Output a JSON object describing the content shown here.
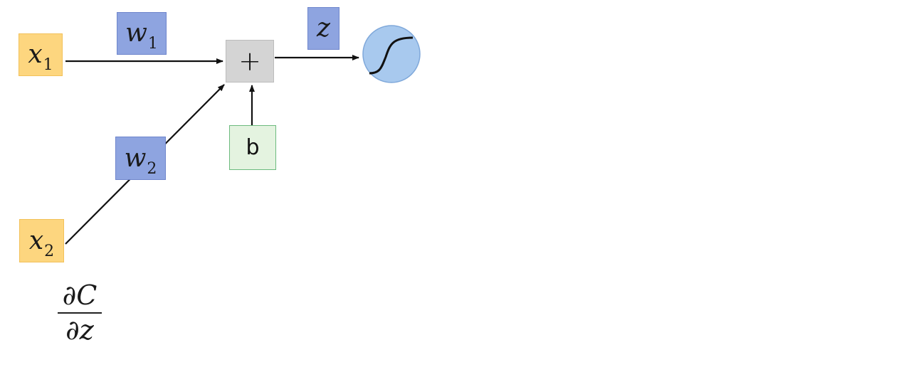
{
  "diagram": {
    "inputs": [
      {
        "var": "x",
        "sub": "1"
      },
      {
        "var": "x",
        "sub": "2"
      }
    ],
    "weights": [
      {
        "var": "w",
        "sub": "1"
      },
      {
        "var": "w",
        "sub": "2"
      }
    ],
    "sum_symbol": "+",
    "bias_label": "b",
    "z_label": "z",
    "activation_icon": "sigmoid-curve-icon",
    "derivative": {
      "numerator": "∂C",
      "denominator": "∂z"
    }
  },
  "colors": {
    "input_fill": "#fdd67f",
    "weight_fill": "#8ea4e0",
    "sum_fill": "#d4d4d4",
    "bias_fill": "#e4f3e0",
    "bias_border": "#6cbb7e",
    "neuron_fill": "#a8c9ee",
    "arrow": "#111111"
  }
}
